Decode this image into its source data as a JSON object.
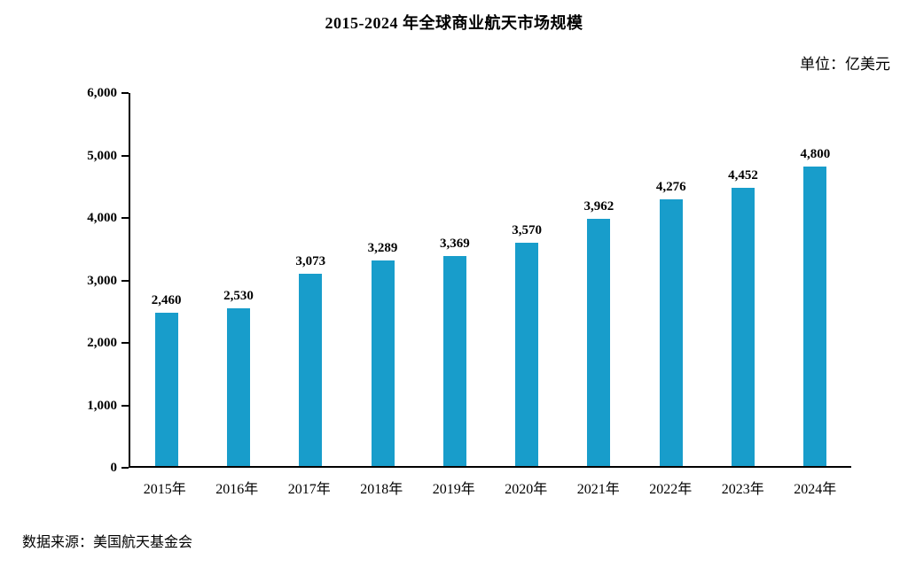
{
  "page": {
    "title": "2015-2024 年全球商业航天市场规模",
    "unit_label": "单位：亿美元",
    "source": "数据来源：美国航天基金会"
  },
  "chart_data": {
    "type": "bar",
    "title": "2015-2024 年全球商业航天市场规模",
    "unit": "亿美元",
    "categories": [
      "2015年",
      "2016年",
      "2017年",
      "2018年",
      "2019年",
      "2020年",
      "2021年",
      "2022年",
      "2023年",
      "2024年"
    ],
    "values": [
      2460,
      2530,
      3073,
      3289,
      3369,
      3570,
      3962,
      4276,
      4452,
      4800
    ],
    "value_labels": [
      "2,460",
      "2,530",
      "3,073",
      "3,289",
      "3,369",
      "3,570",
      "3,962",
      "4,276",
      "4,452",
      "4,800"
    ],
    "xlabel": "",
    "ylabel": "",
    "ylim": [
      0,
      6000
    ],
    "y_ticks": [
      0,
      1000,
      2000,
      3000,
      4000,
      5000,
      6000
    ],
    "y_tick_labels": [
      "0",
      "1,000",
      "2,000",
      "3,000",
      "4,000",
      "5,000",
      "6,000"
    ],
    "grid": false,
    "legend": false,
    "bar_color": "#189DCB"
  }
}
